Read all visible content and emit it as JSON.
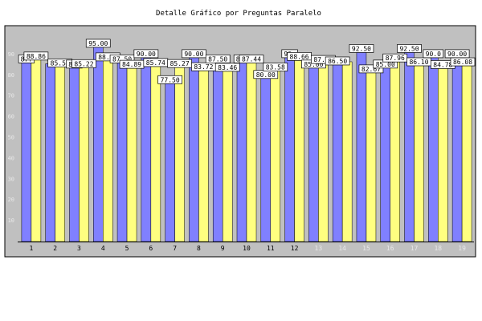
{
  "chart_data": {
    "type": "bar",
    "title": "Detalle Gráfico por Preguntas Paralelo",
    "xlabel": "",
    "ylabel": "",
    "ylim": [
      0,
      100
    ],
    "yticks": [
      10,
      20,
      30,
      40,
      50,
      60,
      70,
      80,
      90
    ],
    "grid": false,
    "legend": "none",
    "categories": [
      "1",
      "2",
      "3",
      "4",
      "5",
      "6",
      "7",
      "8",
      "9",
      "10",
      "11",
      "12",
      "13",
      "14",
      "15",
      "16",
      "17",
      "18",
      "19"
    ],
    "category_colors": [
      "#000000",
      "#000000",
      "#000000",
      "#000000",
      "#000000",
      "#000000",
      "#000000",
      "#000000",
      "#000000",
      "#000000",
      "#000000",
      "#000000",
      "#e8e8e8",
      "#e8e8e8",
      "#e8e8e8",
      "#e8e8e8",
      "#e8e8e8",
      "#e8e8e8",
      "#e8e8e8"
    ],
    "series": [
      {
        "color": "#8080ff",
        "values": [
          87.5,
          85.53,
          85.0,
          95.0,
          87.5,
          90.0,
          77.5,
          90.0,
          87.5,
          87.5,
          80.0,
          90.0,
          85.0,
          86.5,
          92.5,
          85.0,
          92.5,
          90.0,
          90.0
        ],
        "labels": [
          "87.",
          "",
          "85.",
          "95.00",
          "87.50",
          "90.00",
          "77.50",
          "90.00",
          "87.50",
          "87.",
          "80.00",
          "90.",
          "85.00",
          "86.50",
          "92.50",
          "85.00",
          "92.50",
          "90.0",
          "90.00"
        ]
      },
      {
        "color": "#ffff80",
        "values": [
          88.86,
          85.53,
          85.22,
          88.46,
          84.89,
          85.74,
          85.27,
          83.72,
          83.46,
          87.44,
          83.58,
          88.66,
          87.21,
          86.5,
          82.67,
          87.96,
          86.1,
          84.78,
          86.08
        ],
        "labels": [
          "88.86",
          "85.53",
          "85.22",
          "88.46",
          "84.89",
          "85.74",
          "85.27",
          "83.72",
          "83.46",
          "87.44",
          "83.58",
          "88.66",
          "87.21",
          "",
          "82.67",
          "87.96",
          "86.10",
          "84.78",
          "86.08"
        ]
      }
    ]
  }
}
